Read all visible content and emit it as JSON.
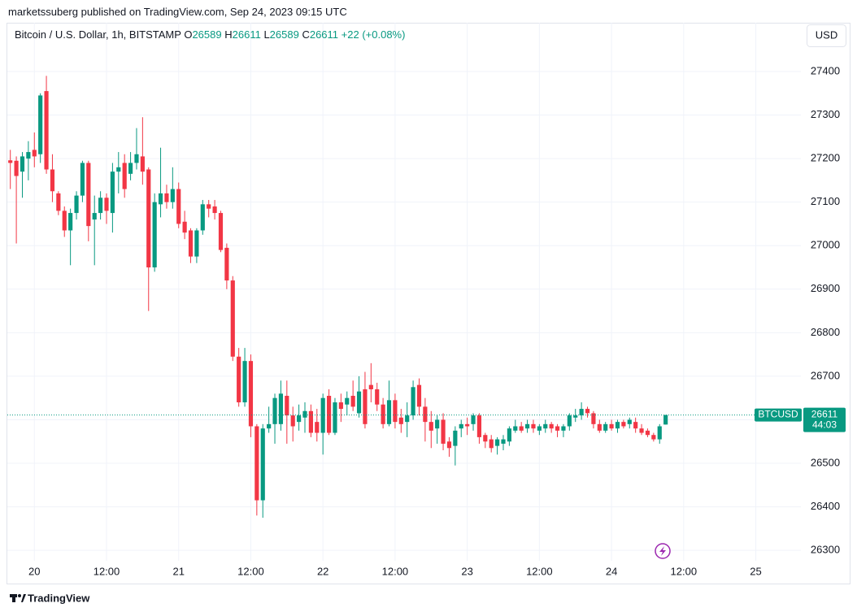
{
  "chart_data": {
    "type": "candlestick",
    "title": "marketssuberg published on TradingView.com, Sep 24, 2023 09:15 UTC",
    "symbol_title": "Bitcoin / U.S. Dollar, 1h, BITSTAMP",
    "ohlc_letters": [
      "O",
      "H",
      "L",
      "C"
    ],
    "change": "+22 (+0.08%)",
    "currency": "USD",
    "symbol_tag": "BTCUSD",
    "countdown": "44:03",
    "brand": "TradingView",
    "up_color": "#089981",
    "down_color": "#f23645",
    "grid": true,
    "categories": [
      null,
      null,
      null,
      null,
      "20",
      null,
      null,
      null,
      null,
      null,
      null,
      null,
      null,
      null,
      null,
      null,
      "12:00",
      null,
      null,
      null,
      null,
      null,
      null,
      null,
      null,
      null,
      null,
      null,
      "21",
      null,
      null,
      null,
      null,
      null,
      null,
      null,
      null,
      null,
      null,
      null,
      "12:00",
      null,
      null,
      null,
      null,
      null,
      null,
      null,
      null,
      null,
      null,
      null,
      "22",
      null,
      null,
      null,
      null,
      null,
      null,
      null,
      null,
      null,
      null,
      null,
      "12:00",
      null,
      null,
      null,
      null,
      null,
      null,
      null,
      null,
      null,
      null,
      null,
      "23",
      null,
      null,
      null,
      null,
      null,
      null,
      null,
      null,
      null,
      null,
      null,
      "12:00",
      null,
      null,
      null,
      null,
      null,
      null,
      null,
      null,
      null,
      null,
      null,
      "24",
      null,
      null,
      null,
      null,
      null,
      null,
      null,
      null,
      null,
      null,
      null,
      "12:00",
      null,
      null,
      null,
      null,
      null,
      null,
      null,
      null,
      null,
      null,
      null,
      "25",
      null,
      null,
      null,
      null,
      null,
      null,
      null
    ],
    "open": [
      27196,
      27195,
      27170,
      27200,
      27220,
      27210,
      27355,
      27175,
      27120,
      27080,
      27035,
      27075,
      27115,
      27190,
      27060,
      27075,
      27110,
      27075,
      27170,
      27190,
      27165,
      27190,
      27205,
      27175,
      26950,
      27095,
      27120,
      27100,
      27130,
      27055,
      27035,
      26975,
      27035,
      27095,
      27090,
      27075,
      26995,
      26920,
      26745,
      26640,
      26735,
      26585,
      26415,
      26580,
      26590,
      26590,
      26655,
      26610,
      26595,
      26605,
      26620,
      26595,
      26570,
      26655,
      26570,
      26640,
      26635,
      26655,
      26615,
      26670,
      26680,
      26670,
      26635,
      26590,
      26645,
      26605,
      26595,
      26610,
      26680,
      26630,
      26595,
      26580,
      26600,
      26550,
      26540,
      26580,
      26590,
      26590,
      26610,
      26565,
      26555,
      26540,
      26545,
      26550,
      26575,
      26585,
      26580,
      26590,
      26575,
      26580,
      26590,
      26585,
      26575,
      26585,
      26605,
      26610,
      26625,
      26615,
      26590,
      26575,
      26590,
      26580,
      26595,
      26590,
      26595,
      26580,
      26575,
      26565,
      26555,
      26589,
      null,
      null,
      null,
      null,
      null,
      null,
      null,
      null,
      null,
      null,
      null,
      null,
      null,
      null,
      null,
      null,
      null,
      null,
      null,
      null,
      null,
      null
    ],
    "high": [
      27220,
      27205,
      27215,
      27240,
      27260,
      27350,
      27390,
      27210,
      27125,
      27090,
      27085,
      27125,
      27195,
      27195,
      27115,
      27125,
      27120,
      27190,
      27215,
      27210,
      27215,
      27270,
      27295,
      27180,
      27120,
      27225,
      27140,
      27180,
      27145,
      27080,
      27040,
      27040,
      27105,
      27105,
      27105,
      27080,
      27005,
      26930,
      26765,
      26765,
      26750,
      26590,
      26590,
      26630,
      26660,
      26690,
      26690,
      26630,
      26635,
      26640,
      26635,
      26625,
      26660,
      26670,
      26650,
      26660,
      26665,
      26690,
      26700,
      26710,
      26730,
      26685,
      26650,
      26690,
      26660,
      26625,
      26640,
      26690,
      26695,
      26650,
      26620,
      26610,
      26615,
      26560,
      26585,
      26600,
      26605,
      26615,
      26615,
      26570,
      26565,
      26560,
      26565,
      26585,
      26600,
      26595,
      26600,
      26600,
      26590,
      26600,
      26595,
      26590,
      26590,
      26615,
      26625,
      26640,
      26630,
      26620,
      26600,
      26595,
      26600,
      26600,
      26600,
      26605,
      26605,
      26590,
      26580,
      26570,
      26590,
      26611,
      null,
      null,
      null,
      null,
      null,
      null,
      null,
      null,
      null,
      null,
      null,
      null,
      null,
      null,
      null,
      null,
      null,
      null,
      null,
      null,
      null,
      null
    ],
    "low": [
      27130,
      27005,
      27110,
      27150,
      27180,
      27190,
      27165,
      27100,
      27070,
      27020,
      26955,
      27060,
      27100,
      27010,
      26955,
      27060,
      27050,
      27030,
      27120,
      27110,
      27150,
      27175,
      27140,
      26850,
      26940,
      27065,
      27085,
      27085,
      27040,
      27015,
      26960,
      26960,
      27025,
      27065,
      27060,
      26985,
      26900,
      26735,
      26630,
      26630,
      26560,
      26380,
      26375,
      26570,
      26545,
      26575,
      26545,
      26550,
      26575,
      26570,
      26560,
      26550,
      26520,
      26565,
      26565,
      26595,
      26610,
      26620,
      26605,
      26580,
      26640,
      26620,
      26580,
      26585,
      26580,
      26570,
      26560,
      26600,
      26610,
      26550,
      26535,
      26545,
      26530,
      26515,
      26495,
      26560,
      26565,
      26575,
      26545,
      26535,
      26525,
      26520,
      26530,
      26540,
      26570,
      26570,
      26570,
      26570,
      26565,
      26570,
      26570,
      26560,
      26560,
      26575,
      26595,
      26600,
      26605,
      26580,
      26570,
      26570,
      26575,
      26570,
      26580,
      26580,
      26570,
      26565,
      26560,
      26550,
      26545,
      26589,
      null,
      null,
      null,
      null,
      null,
      null,
      null,
      null,
      null,
      null,
      null,
      null,
      null,
      null,
      null,
      null,
      null,
      null,
      null,
      null,
      null,
      null
    ],
    "close": [
      27190,
      27160,
      27205,
      27215,
      27205,
      27345,
      27175,
      27125,
      27080,
      27035,
      27075,
      27115,
      27190,
      27045,
      27075,
      27110,
      27080,
      27170,
      27180,
      27130,
      27190,
      27210,
      27170,
      26950,
      27100,
      27120,
      27100,
      27130,
      27050,
      27030,
      26975,
      27035,
      27095,
      27085,
      27075,
      26990,
      26920,
      26745,
      26640,
      26735,
      26585,
      26415,
      26580,
      26590,
      26650,
      26660,
      26610,
      26585,
      26610,
      26620,
      26570,
      26570,
      26650,
      26570,
      26640,
      26625,
      26650,
      26630,
      26665,
      26590,
      26670,
      26635,
      26590,
      26645,
      26595,
      26590,
      26610,
      26675,
      26630,
      26595,
      26575,
      26600,
      26545,
      26535,
      26575,
      26590,
      26585,
      26610,
      26560,
      26550,
      26535,
      26555,
      26555,
      26580,
      26585,
      26575,
      26590,
      26580,
      26585,
      26590,
      26580,
      26575,
      26585,
      26610,
      26610,
      26625,
      26615,
      26590,
      26575,
      26590,
      26580,
      26595,
      26585,
      26600,
      26580,
      26570,
      26565,
      26555,
      26585,
      26611,
      null,
      null,
      null,
      null,
      null,
      null,
      null,
      null,
      null,
      null,
      null,
      null,
      null,
      null,
      null,
      null,
      null,
      null,
      null,
      null,
      null,
      null
    ],
    "ylim": [
      26276,
      27512
    ],
    "yticks": [
      26300,
      26400,
      26500,
      26600,
      26700,
      26800,
      26900,
      27000,
      27100,
      27200,
      27300,
      27400
    ]
  }
}
